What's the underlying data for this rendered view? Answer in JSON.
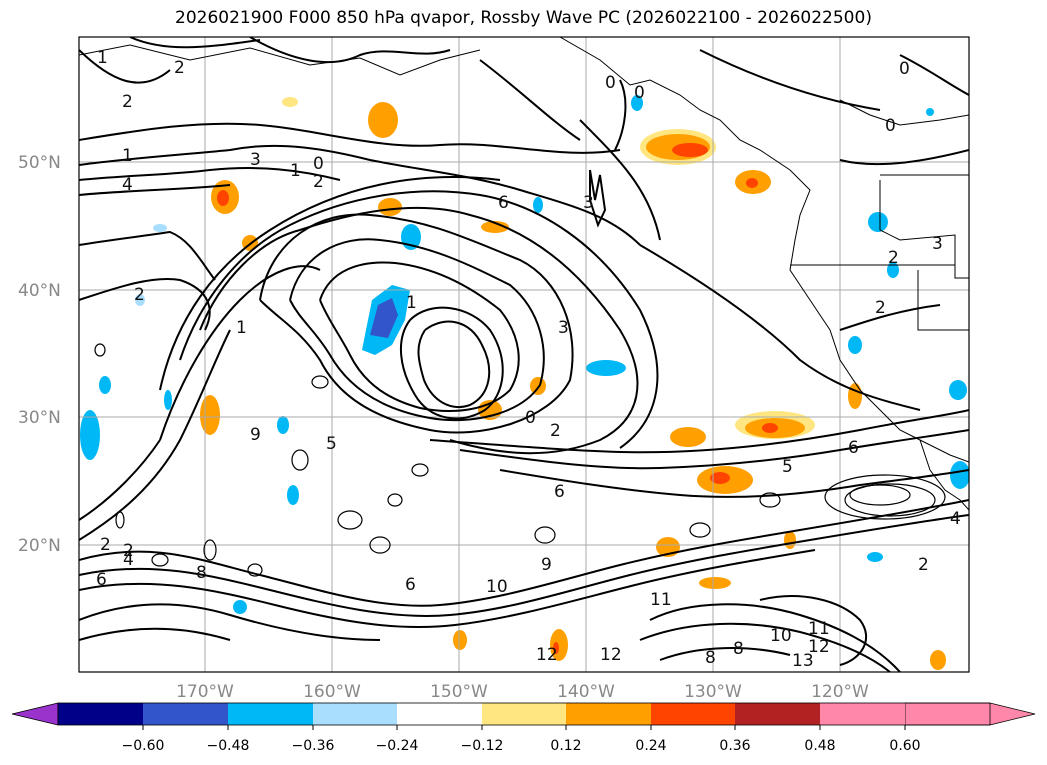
{
  "title": "2026021900 F000 850 hPa qvapor, Rossby Wave PC (2026022100 - 2026022500)",
  "lat_labels": [
    "50°N",
    "40°N",
    "30°N",
    "20°N"
  ],
  "lon_labels": [
    "170°W",
    "160°W",
    "150°W",
    "140°W",
    "130°W",
    "120°W"
  ],
  "colorbar": {
    "ticks": [
      "−0.60",
      "−0.48",
      "−0.36",
      "−0.24",
      "−0.12",
      "0.12",
      "0.24",
      "0.36",
      "0.48",
      "0.60"
    ],
    "colors": [
      "#9933cc",
      "#000088",
      "#3355cc",
      "#00b8f5",
      "#aadeff",
      "#ffffff",
      "#ffe680",
      "#ffa000",
      "#ff4400",
      "#b22222",
      "#ff88aa"
    ]
  },
  "contour_labels": [
    "1",
    "2",
    "2",
    "1",
    "4",
    "3",
    "1",
    "0",
    "2",
    "0",
    "0",
    "0",
    "0",
    "6",
    "3",
    "2",
    "2",
    "9",
    "5",
    "6",
    "6",
    "10",
    "9",
    "12",
    "12",
    "11",
    "8",
    "8",
    "10",
    "11",
    "12",
    "13",
    "2",
    "6",
    "5",
    "4",
    "2",
    "0",
    "2",
    "3",
    "2",
    "3",
    "2",
    "6",
    "1",
    "1",
    "8",
    "4"
  ]
}
